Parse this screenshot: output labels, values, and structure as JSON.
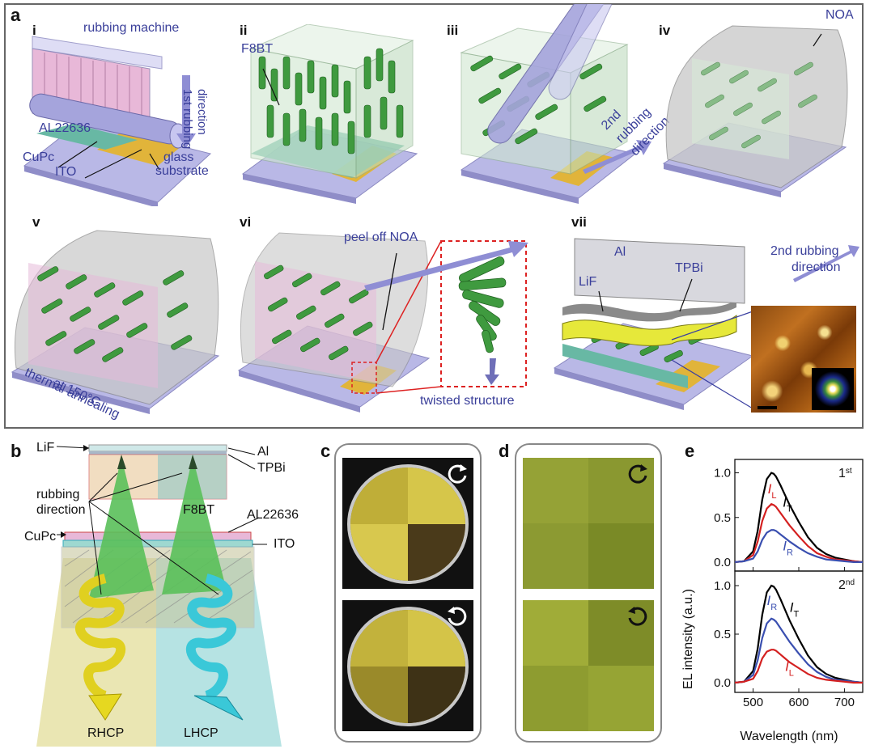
{
  "panel_a": {
    "letter": "a",
    "steps": [
      "i",
      "ii",
      "iii",
      "iv",
      "v",
      "vi",
      "vii"
    ],
    "labels": {
      "rubbing_machine": "rubbing machine",
      "al22636": "AL22636",
      "cupc": "CuPc",
      "ito": "ITO",
      "glass": "glass",
      "substrate": "substrate",
      "first_rubbing_1": "1st rubbing",
      "first_rubbing_2": "direction",
      "f8bt": "F8BT",
      "second_rubbing_1": "2nd",
      "second_rubbing_2": "rubbing",
      "second_rubbing_3": "direction",
      "noa": "NOA",
      "thermal_1": "thermal annealing",
      "thermal_2": "at 150°C",
      "peel_off": "peel off NOA",
      "twisted": "twisted structure",
      "al": "Al",
      "lif": "LiF",
      "tpbi": "TPBi",
      "second_rubbing_vii_1": "2nd rubbing",
      "second_rubbing_vii_2": "direction"
    }
  },
  "panel_b": {
    "letter": "b",
    "labels": {
      "lif": "LiF",
      "al": "Al",
      "tpbi": "TPBi",
      "rubbing_1": "rubbing",
      "rubbing_2": "direction",
      "f8bt": "F8BT",
      "al22636": "AL22636",
      "cupc": "CuPc",
      "ito": "ITO",
      "rhcp": "RHCP",
      "lhcp": "LHCP"
    }
  },
  "panel_c": {
    "letter": "c"
  },
  "panel_d": {
    "letter": "d"
  },
  "panel_e": {
    "letter": "e",
    "ylabel": "EL intensity (a.u.)",
    "xlabel": "Wavelength (nm)",
    "top_tag": "1st",
    "bottom_tag": "2nd",
    "curve_labels": {
      "IT": "I",
      "IT_sub": "T",
      "IL": "I",
      "IL_sub": "L",
      "IR": "I",
      "IR_sub": "R"
    }
  },
  "chart_data": [
    {
      "type": "line",
      "title": "",
      "tag": "1st",
      "xlabel": "Wavelength (nm)",
      "ylabel": "EL intensity (a.u.)",
      "xlim": [
        460,
        740
      ],
      "ylim": [
        -0.1,
        1.15
      ],
      "xticks": [
        "500",
        "600",
        "700"
      ],
      "yticks": [
        "0.0",
        "0.5",
        "1.0"
      ],
      "x": [
        460,
        480,
        500,
        510,
        520,
        530,
        540,
        545,
        550,
        560,
        570,
        580,
        600,
        620,
        640,
        660,
        680,
        700,
        720,
        740
      ],
      "series": [
        {
          "name": "IT",
          "color": "#000000",
          "values": [
            0.0,
            0.01,
            0.12,
            0.35,
            0.7,
            0.93,
            1.0,
            0.99,
            0.96,
            0.86,
            0.75,
            0.64,
            0.45,
            0.28,
            0.16,
            0.09,
            0.05,
            0.03,
            0.01,
            0.0
          ]
        },
        {
          "name": "IL",
          "color": "#d42020",
          "values": [
            0.0,
            0.01,
            0.08,
            0.23,
            0.46,
            0.6,
            0.65,
            0.64,
            0.62,
            0.55,
            0.48,
            0.41,
            0.29,
            0.18,
            0.1,
            0.06,
            0.03,
            0.02,
            0.01,
            0.0
          ]
        },
        {
          "name": "IR",
          "color": "#3a4fb0",
          "values": [
            0.0,
            0.01,
            0.04,
            0.12,
            0.25,
            0.33,
            0.36,
            0.36,
            0.35,
            0.31,
            0.27,
            0.23,
            0.16,
            0.1,
            0.06,
            0.03,
            0.02,
            0.01,
            0.0,
            0.0
          ]
        }
      ]
    },
    {
      "type": "line",
      "title": "",
      "tag": "2nd",
      "xlabel": "Wavelength (nm)",
      "ylabel": "EL intensity (a.u.)",
      "xlim": [
        460,
        740
      ],
      "ylim": [
        -0.1,
        1.15
      ],
      "xticks": [
        "500",
        "600",
        "700"
      ],
      "yticks": [
        "0.0",
        "0.5",
        "1.0"
      ],
      "x": [
        460,
        480,
        500,
        510,
        520,
        530,
        540,
        545,
        550,
        560,
        570,
        580,
        600,
        620,
        640,
        660,
        680,
        700,
        720,
        740
      ],
      "series": [
        {
          "name": "IT",
          "color": "#000000",
          "values": [
            0.0,
            0.01,
            0.12,
            0.35,
            0.7,
            0.93,
            1.0,
            0.99,
            0.96,
            0.86,
            0.75,
            0.64,
            0.45,
            0.28,
            0.16,
            0.09,
            0.05,
            0.03,
            0.01,
            0.0
          ]
        },
        {
          "name": "IR",
          "color": "#3a4fb0",
          "values": [
            0.0,
            0.01,
            0.08,
            0.23,
            0.46,
            0.61,
            0.66,
            0.65,
            0.63,
            0.56,
            0.49,
            0.42,
            0.3,
            0.19,
            0.11,
            0.06,
            0.03,
            0.02,
            0.01,
            0.0
          ]
        },
        {
          "name": "IL",
          "color": "#d42020",
          "values": [
            0.0,
            0.01,
            0.04,
            0.12,
            0.25,
            0.32,
            0.34,
            0.34,
            0.33,
            0.29,
            0.25,
            0.21,
            0.15,
            0.09,
            0.05,
            0.03,
            0.02,
            0.01,
            0.0,
            0.0
          ]
        }
      ]
    }
  ]
}
